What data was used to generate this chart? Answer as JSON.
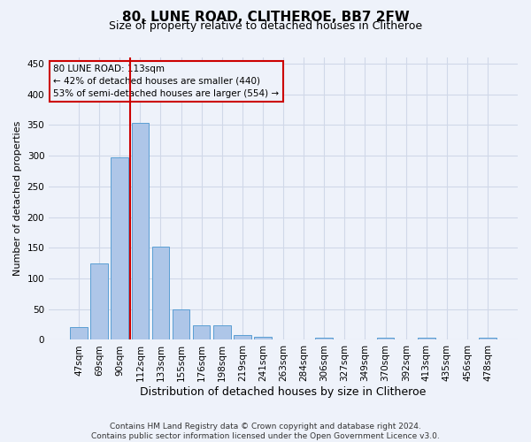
{
  "title": "80, LUNE ROAD, CLITHEROE, BB7 2FW",
  "subtitle": "Size of property relative to detached houses in Clitheroe",
  "xlabel": "Distribution of detached houses by size in Clitheroe",
  "ylabel": "Number of detached properties",
  "footer_line1": "Contains HM Land Registry data © Crown copyright and database right 2024.",
  "footer_line2": "Contains public sector information licensed under the Open Government Licence v3.0.",
  "bar_labels": [
    "47sqm",
    "69sqm",
    "90sqm",
    "112sqm",
    "133sqm",
    "155sqm",
    "176sqm",
    "198sqm",
    "219sqm",
    "241sqm",
    "263sqm",
    "284sqm",
    "306sqm",
    "327sqm",
    "349sqm",
    "370sqm",
    "392sqm",
    "413sqm",
    "435sqm",
    "456sqm",
    "478sqm"
  ],
  "bar_values": [
    21,
    124,
    298,
    354,
    152,
    49,
    24,
    24,
    8,
    5,
    0,
    0,
    4,
    0,
    0,
    4,
    0,
    4,
    0,
    0,
    4
  ],
  "bar_color": "#aec6e8",
  "bar_edge_color": "#5a9fd4",
  "grid_color": "#d0d8e8",
  "background_color": "#eef2fa",
  "vline_color": "#cc0000",
  "vline_index": 3,
  "annotation_line1": "80 LUNE ROAD: 113sqm",
  "annotation_line2": "← 42% of detached houses are smaller (440)",
  "annotation_line3": "53% of semi-detached houses are larger (554) →",
  "annotation_box_color": "#cc0000",
  "ylim": [
    0,
    460
  ],
  "yticks": [
    0,
    50,
    100,
    150,
    200,
    250,
    300,
    350,
    400,
    450
  ],
  "title_fontsize": 11,
  "subtitle_fontsize": 9,
  "ylabel_fontsize": 8,
  "xlabel_fontsize": 9,
  "tick_fontsize": 7.5,
  "footer_fontsize": 6.5
}
